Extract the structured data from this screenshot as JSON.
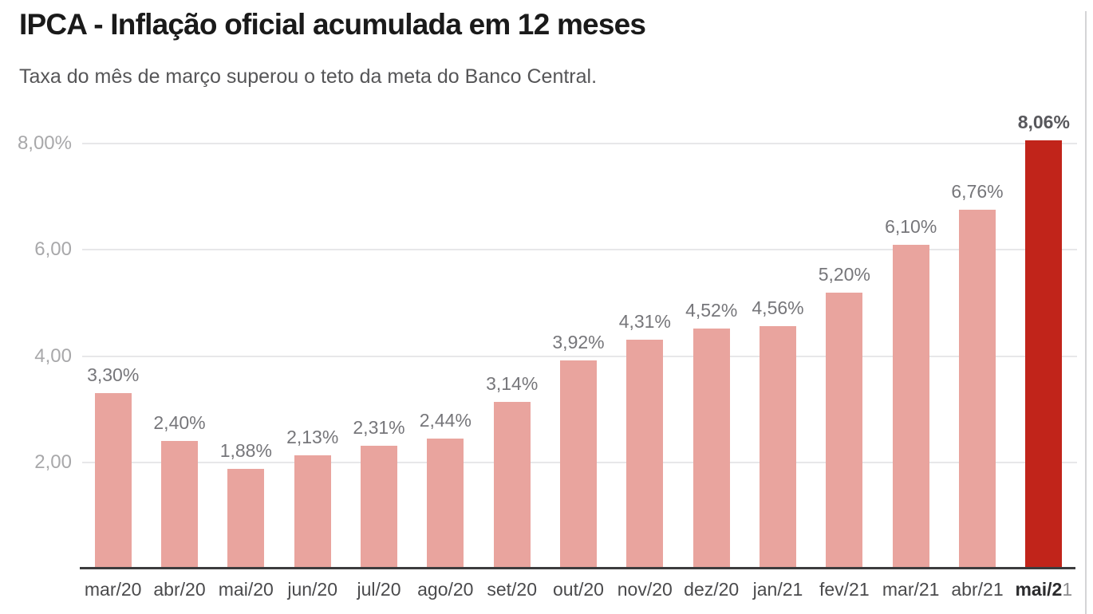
{
  "header": {
    "title": "IPCA - Inflação oficial acumulada em 12 meses",
    "subtitle": "Taxa do mês de março superou o teto da meta do Banco Central."
  },
  "chart_data": {
    "type": "bar",
    "title": "IPCA - Inflação oficial acumulada em 12 meses",
    "subtitle": "Taxa do mês de março superou o teto da meta do Banco Central.",
    "categories": [
      "mar/20",
      "abr/20",
      "mai/20",
      "jun/20",
      "jul/20",
      "ago/20",
      "set/20",
      "out/20",
      "nov/20",
      "dez/20",
      "jan/21",
      "fev/21",
      "mar/21",
      "abr/21",
      "mai/21"
    ],
    "values": [
      3.3,
      2.4,
      1.88,
      2.13,
      2.31,
      2.44,
      3.14,
      3.92,
      4.31,
      4.52,
      4.56,
      5.2,
      6.1,
      6.76,
      8.06
    ],
    "value_labels": [
      "3,30%",
      "2,40%",
      "1,88%",
      "2,13%",
      "2,31%",
      "2,44%",
      "3,14%",
      "3,92%",
      "4,31%",
      "4,52%",
      "4,56%",
      "5,20%",
      "6,10%",
      "6,76%",
      "8,06%"
    ],
    "highlight_index": 14,
    "xlabel": "",
    "ylabel": "",
    "ylim": [
      0,
      8.5
    ],
    "yticks": [
      {
        "value": 2,
        "label": "2,00"
      },
      {
        "value": 4,
        "label": "4,00"
      },
      {
        "value": 6,
        "label": "6,00"
      },
      {
        "value": 8,
        "label": "8,00%"
      }
    ],
    "grid": true,
    "legend": "none",
    "colors": {
      "bar": "#e9a49e",
      "highlight_bar": "#c1241a",
      "gridline": "#e7e7e9",
      "axis": "#3c3c3e",
      "tick_text": "#a8a8aa",
      "value_label_text": "#76767a",
      "highlight_value_label_text": "#58585c",
      "x_label_text": "#4a4a4c",
      "highlight_x_label_text": "#2b2b2d",
      "highlight_x_label_muted": "#8d8d8f",
      "title_text": "#1a1a1a",
      "subtitle_text": "#555557",
      "page_border": "#d4d4d6"
    }
  }
}
